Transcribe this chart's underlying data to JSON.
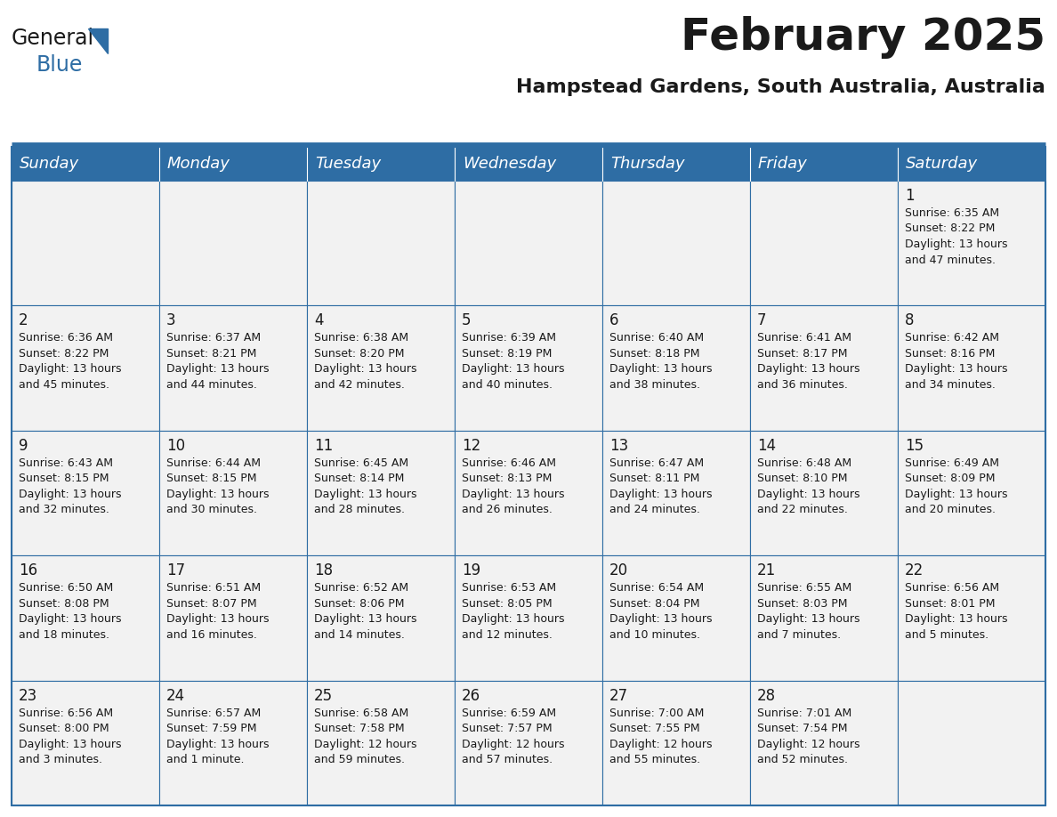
{
  "title": "February 2025",
  "subtitle": "Hampstead Gardens, South Australia, Australia",
  "header_color": "#2E6DA4",
  "header_text_color": "#FFFFFF",
  "cell_bg_color": "#F2F2F2",
  "border_color": "#2E6DA4",
  "day_headers": [
    "Sunday",
    "Monday",
    "Tuesday",
    "Wednesday",
    "Thursday",
    "Friday",
    "Saturday"
  ],
  "title_fontsize": 36,
  "subtitle_fontsize": 16,
  "header_fontsize": 13,
  "day_number_fontsize": 12,
  "info_fontsize": 9.0,
  "logo_general_color": "#1A1A1A",
  "logo_blue_color": "#2E6DA4",
  "weeks": [
    [
      {
        "day": null,
        "info": null
      },
      {
        "day": null,
        "info": null
      },
      {
        "day": null,
        "info": null
      },
      {
        "day": null,
        "info": null
      },
      {
        "day": null,
        "info": null
      },
      {
        "day": null,
        "info": null
      },
      {
        "day": 1,
        "info": "Sunrise: 6:35 AM\nSunset: 8:22 PM\nDaylight: 13 hours\nand 47 minutes."
      }
    ],
    [
      {
        "day": 2,
        "info": "Sunrise: 6:36 AM\nSunset: 8:22 PM\nDaylight: 13 hours\nand 45 minutes."
      },
      {
        "day": 3,
        "info": "Sunrise: 6:37 AM\nSunset: 8:21 PM\nDaylight: 13 hours\nand 44 minutes."
      },
      {
        "day": 4,
        "info": "Sunrise: 6:38 AM\nSunset: 8:20 PM\nDaylight: 13 hours\nand 42 minutes."
      },
      {
        "day": 5,
        "info": "Sunrise: 6:39 AM\nSunset: 8:19 PM\nDaylight: 13 hours\nand 40 minutes."
      },
      {
        "day": 6,
        "info": "Sunrise: 6:40 AM\nSunset: 8:18 PM\nDaylight: 13 hours\nand 38 minutes."
      },
      {
        "day": 7,
        "info": "Sunrise: 6:41 AM\nSunset: 8:17 PM\nDaylight: 13 hours\nand 36 minutes."
      },
      {
        "day": 8,
        "info": "Sunrise: 6:42 AM\nSunset: 8:16 PM\nDaylight: 13 hours\nand 34 minutes."
      }
    ],
    [
      {
        "day": 9,
        "info": "Sunrise: 6:43 AM\nSunset: 8:15 PM\nDaylight: 13 hours\nand 32 minutes."
      },
      {
        "day": 10,
        "info": "Sunrise: 6:44 AM\nSunset: 8:15 PM\nDaylight: 13 hours\nand 30 minutes."
      },
      {
        "day": 11,
        "info": "Sunrise: 6:45 AM\nSunset: 8:14 PM\nDaylight: 13 hours\nand 28 minutes."
      },
      {
        "day": 12,
        "info": "Sunrise: 6:46 AM\nSunset: 8:13 PM\nDaylight: 13 hours\nand 26 minutes."
      },
      {
        "day": 13,
        "info": "Sunrise: 6:47 AM\nSunset: 8:11 PM\nDaylight: 13 hours\nand 24 minutes."
      },
      {
        "day": 14,
        "info": "Sunrise: 6:48 AM\nSunset: 8:10 PM\nDaylight: 13 hours\nand 22 minutes."
      },
      {
        "day": 15,
        "info": "Sunrise: 6:49 AM\nSunset: 8:09 PM\nDaylight: 13 hours\nand 20 minutes."
      }
    ],
    [
      {
        "day": 16,
        "info": "Sunrise: 6:50 AM\nSunset: 8:08 PM\nDaylight: 13 hours\nand 18 minutes."
      },
      {
        "day": 17,
        "info": "Sunrise: 6:51 AM\nSunset: 8:07 PM\nDaylight: 13 hours\nand 16 minutes."
      },
      {
        "day": 18,
        "info": "Sunrise: 6:52 AM\nSunset: 8:06 PM\nDaylight: 13 hours\nand 14 minutes."
      },
      {
        "day": 19,
        "info": "Sunrise: 6:53 AM\nSunset: 8:05 PM\nDaylight: 13 hours\nand 12 minutes."
      },
      {
        "day": 20,
        "info": "Sunrise: 6:54 AM\nSunset: 8:04 PM\nDaylight: 13 hours\nand 10 minutes."
      },
      {
        "day": 21,
        "info": "Sunrise: 6:55 AM\nSunset: 8:03 PM\nDaylight: 13 hours\nand 7 minutes."
      },
      {
        "day": 22,
        "info": "Sunrise: 6:56 AM\nSunset: 8:01 PM\nDaylight: 13 hours\nand 5 minutes."
      }
    ],
    [
      {
        "day": 23,
        "info": "Sunrise: 6:56 AM\nSunset: 8:00 PM\nDaylight: 13 hours\nand 3 minutes."
      },
      {
        "day": 24,
        "info": "Sunrise: 6:57 AM\nSunset: 7:59 PM\nDaylight: 13 hours\nand 1 minute."
      },
      {
        "day": 25,
        "info": "Sunrise: 6:58 AM\nSunset: 7:58 PM\nDaylight: 12 hours\nand 59 minutes."
      },
      {
        "day": 26,
        "info": "Sunrise: 6:59 AM\nSunset: 7:57 PM\nDaylight: 12 hours\nand 57 minutes."
      },
      {
        "day": 27,
        "info": "Sunrise: 7:00 AM\nSunset: 7:55 PM\nDaylight: 12 hours\nand 55 minutes."
      },
      {
        "day": 28,
        "info": "Sunrise: 7:01 AM\nSunset: 7:54 PM\nDaylight: 12 hours\nand 52 minutes."
      },
      {
        "day": null,
        "info": null
      }
    ]
  ]
}
